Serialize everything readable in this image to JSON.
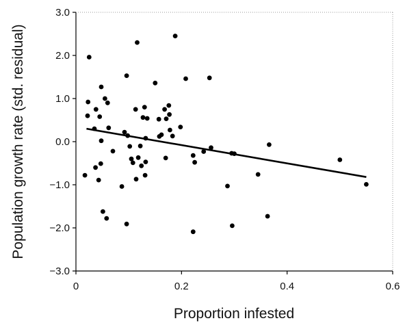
{
  "chart_data": {
    "type": "scatter",
    "title": "",
    "xlabel": "Proportion infested",
    "ylabel": "Population growth rate (std. residual)",
    "xlim": [
      0,
      0.6
    ],
    "ylim": [
      -3.0,
      3.0
    ],
    "x_ticks": [
      0,
      0.2,
      0.4,
      0.6
    ],
    "x_tick_labels": [
      "0",
      "0.2",
      "0.4",
      "0.6"
    ],
    "y_ticks": [
      3.0,
      2.0,
      1.0,
      0.0,
      -1.0,
      -2.0,
      -3.0
    ],
    "y_tick_labels": [
      "3.0",
      "2.0",
      "1.0",
      "0.0",
      "−1.0",
      "−2.0",
      "−3.0"
    ],
    "grid": false,
    "legend": "none",
    "colors": {
      "points": "#000000",
      "line": "#000000",
      "axes": "#000000"
    },
    "series": [
      {
        "points": [
          [
            0.017,
            -0.78
          ],
          [
            0.022,
            0.6
          ],
          [
            0.023,
            0.92
          ],
          [
            0.025,
            1.96
          ],
          [
            0.035,
            0.3
          ],
          [
            0.037,
            -0.6
          ],
          [
            0.038,
            0.75
          ],
          [
            0.043,
            -0.89
          ],
          [
            0.045,
            0.58
          ],
          [
            0.047,
            -0.51
          ],
          [
            0.048,
            1.27
          ],
          [
            0.048,
            0.02
          ],
          [
            0.051,
            -1.62
          ],
          [
            0.055,
            1.0
          ],
          [
            0.058,
            -1.78
          ],
          [
            0.06,
            0.9
          ],
          [
            0.062,
            0.32
          ],
          [
            0.07,
            -0.22
          ],
          [
            0.087,
            -1.04
          ],
          [
            0.092,
            0.22
          ],
          [
            0.096,
            -1.91
          ],
          [
            0.096,
            1.53
          ],
          [
            0.098,
            0.14
          ],
          [
            0.102,
            -0.11
          ],
          [
            0.105,
            -0.4
          ],
          [
            0.108,
            -0.49
          ],
          [
            0.113,
            0.75
          ],
          [
            0.114,
            -0.87
          ],
          [
            0.116,
            2.3
          ],
          [
            0.118,
            -0.37
          ],
          [
            0.122,
            -0.1
          ],
          [
            0.124,
            -0.56
          ],
          [
            0.127,
            0.56
          ],
          [
            0.13,
            0.8
          ],
          [
            0.131,
            -0.78
          ],
          [
            0.132,
            -0.47
          ],
          [
            0.132,
            0.08
          ],
          [
            0.135,
            0.54
          ],
          [
            0.15,
            1.36
          ],
          [
            0.157,
            0.52
          ],
          [
            0.158,
            0.12
          ],
          [
            0.162,
            0.16
          ],
          [
            0.168,
            0.75
          ],
          [
            0.17,
            -0.38
          ],
          [
            0.171,
            0.53
          ],
          [
            0.176,
            0.84
          ],
          [
            0.177,
            0.63
          ],
          [
            0.178,
            0.27
          ],
          [
            0.183,
            0.13
          ],
          [
            0.188,
            2.45
          ],
          [
            0.198,
            0.34
          ],
          [
            0.208,
            1.46
          ],
          [
            0.222,
            -2.09
          ],
          [
            0.222,
            -0.32
          ],
          [
            0.225,
            -0.48
          ],
          [
            0.242,
            -0.23
          ],
          [
            0.253,
            1.48
          ],
          [
            0.256,
            -0.14
          ],
          [
            0.287,
            -1.03
          ],
          [
            0.295,
            -0.27
          ],
          [
            0.296,
            -1.95
          ],
          [
            0.3,
            -0.28
          ],
          [
            0.345,
            -0.76
          ],
          [
            0.363,
            -1.73
          ],
          [
            0.366,
            -0.07
          ],
          [
            0.5,
            -0.42
          ],
          [
            0.55,
            -0.99
          ]
        ]
      }
    ],
    "trendline": {
      "x": [
        0.02,
        0.55
      ],
      "y": [
        0.3,
        -0.82
      ]
    }
  }
}
